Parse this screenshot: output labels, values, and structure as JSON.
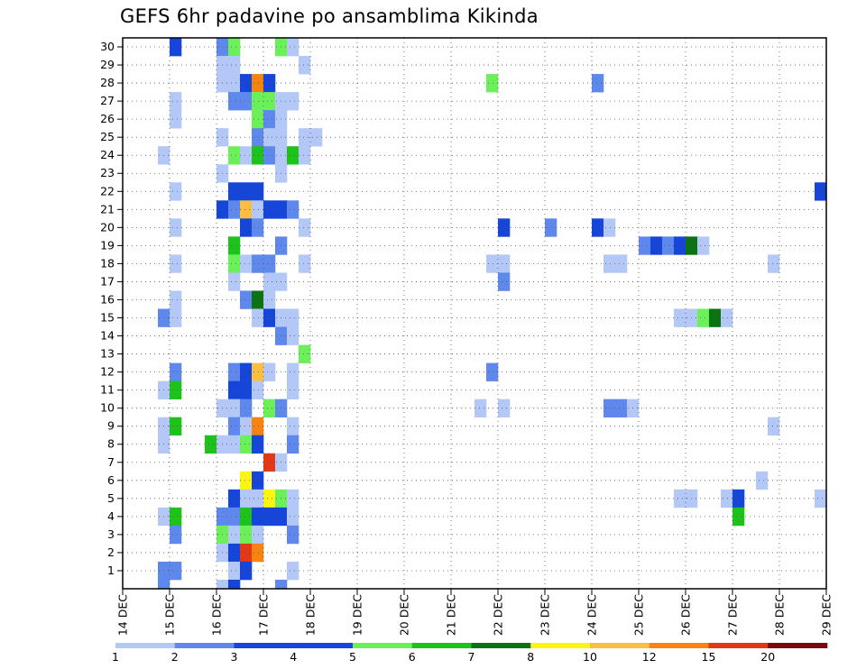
{
  "title": "GEFS 6hr padavine po ansamblima Kikinda",
  "chart_data": {
    "type": "heatmap",
    "title": "GEFS 6hr padavine po ansamblima Kikinda",
    "xlabel": "",
    "ylabel": "",
    "x_tick_labels": [
      "14 DEC",
      "15 DEC",
      "16 DEC",
      "17 DEC",
      "18 DEC",
      "19 DEC",
      "20 DEC",
      "21 DEC",
      "22 DEC",
      "23 DEC",
      "24 DEC",
      "25 DEC",
      "26 DEC",
      "27 DEC",
      "28 DEC",
      "29 DEC"
    ],
    "y_tick_labels": [
      "1",
      "2",
      "3",
      "4",
      "5",
      "6",
      "7",
      "8",
      "9",
      "10",
      "11",
      "12",
      "13",
      "14",
      "15",
      "16",
      "17",
      "18",
      "19",
      "20",
      "21",
      "22",
      "23",
      "24",
      "25",
      "26",
      "27",
      "28",
      "29",
      "30"
    ],
    "x_range": [
      "14 DEC",
      "29 DEC"
    ],
    "y_range": [
      0,
      30
    ],
    "time_step_hours": 6,
    "grid": true,
    "legend_position": "bottom",
    "colorbar": {
      "labels": [
        "1",
        "2",
        "3",
        "4",
        "5",
        "6",
        "7",
        "8",
        "10",
        "12",
        "15",
        "20"
      ],
      "colors": [
        "#b3c8f7",
        "#5f88ec",
        "#1646d9",
        "#1a44e0",
        "#6cf05a",
        "#1dc21b",
        "#0b7312",
        "#fbf611",
        "#fbbe3e",
        "#f78310",
        "#e23818",
        "#770b10"
      ]
    },
    "cells": [
      {
        "m": 30,
        "t": "15 DEC 00Z",
        "v": 3
      },
      {
        "m": 30,
        "t": "16 DEC 00Z",
        "v": 2
      },
      {
        "m": 30,
        "t": "16 DEC 06Z",
        "v": 5
      },
      {
        "m": 30,
        "t": "17 DEC 06Z",
        "v": 5
      },
      {
        "m": 30,
        "t": "17 DEC 12Z",
        "v": 1
      },
      {
        "m": 29,
        "t": "16 DEC 00Z",
        "v": 1
      },
      {
        "m": 29,
        "t": "16 DEC 06Z",
        "v": 1
      },
      {
        "m": 29,
        "t": "17 DEC 18Z",
        "v": 1
      },
      {
        "m": 28,
        "t": "16 DEC 00Z",
        "v": 1
      },
      {
        "m": 28,
        "t": "16 DEC 06Z",
        "v": 1
      },
      {
        "m": 28,
        "t": "16 DEC 12Z",
        "v": 3
      },
      {
        "m": 28,
        "t": "16 DEC 18Z",
        "v": 12
      },
      {
        "m": 28,
        "t": "17 DEC 00Z",
        "v": 3
      },
      {
        "m": 28,
        "t": "21 DEC 18Z",
        "v": 5
      },
      {
        "m": 28,
        "t": "24 DEC 00Z",
        "v": 2
      },
      {
        "m": 27,
        "t": "15 DEC 00Z",
        "v": 1
      },
      {
        "m": 27,
        "t": "16 DEC 06Z",
        "v": 2
      },
      {
        "m": 27,
        "t": "16 DEC 12Z",
        "v": 2
      },
      {
        "m": 27,
        "t": "16 DEC 18Z",
        "v": 5
      },
      {
        "m": 27,
        "t": "17 DEC 00Z",
        "v": 5
      },
      {
        "m": 27,
        "t": "17 DEC 06Z",
        "v": 1
      },
      {
        "m": 27,
        "t": "17 DEC 12Z",
        "v": 1
      },
      {
        "m": 26,
        "t": "15 DEC 00Z",
        "v": 1
      },
      {
        "m": 26,
        "t": "16 DEC 18Z",
        "v": 5
      },
      {
        "m": 26,
        "t": "17 DEC 00Z",
        "v": 2
      },
      {
        "m": 26,
        "t": "17 DEC 06Z",
        "v": 1
      },
      {
        "m": 25,
        "t": "16 DEC 00Z",
        "v": 1
      },
      {
        "m": 25,
        "t": "16 DEC 18Z",
        "v": 2
      },
      {
        "m": 25,
        "t": "17 DEC 00Z",
        "v": 1
      },
      {
        "m": 25,
        "t": "17 DEC 06Z",
        "v": 1
      },
      {
        "m": 25,
        "t": "17 DEC 18Z",
        "v": 1
      },
      {
        "m": 25,
        "t": "18 DEC 00Z",
        "v": 1
      },
      {
        "m": 24,
        "t": "14 DEC 18Z",
        "v": 1
      },
      {
        "m": 24,
        "t": "16 DEC 06Z",
        "v": 5
      },
      {
        "m": 24,
        "t": "16 DEC 12Z",
        "v": 1
      },
      {
        "m": 24,
        "t": "16 DEC 18Z",
        "v": 6
      },
      {
        "m": 24,
        "t": "17 DEC 00Z",
        "v": 2
      },
      {
        "m": 24,
        "t": "17 DEC 06Z",
        "v": 1
      },
      {
        "m": 24,
        "t": "17 DEC 12Z",
        "v": 6
      },
      {
        "m": 24,
        "t": "17 DEC 18Z",
        "v": 1
      },
      {
        "m": 23,
        "t": "16 DEC 00Z",
        "v": 1
      },
      {
        "m": 23,
        "t": "17 DEC 06Z",
        "v": 1
      },
      {
        "m": 22,
        "t": "15 DEC 00Z",
        "v": 1
      },
      {
        "m": 22,
        "t": "16 DEC 06Z",
        "v": 3
      },
      {
        "m": 22,
        "t": "16 DEC 12Z",
        "v": 3
      },
      {
        "m": 22,
        "t": "16 DEC 18Z",
        "v": 3
      },
      {
        "m": 22,
        "t": "28 DEC 18Z",
        "v": 3
      },
      {
        "m": 22,
        "t": "29 DEC 00Z",
        "v": 2
      },
      {
        "m": 21,
        "t": "16 DEC 00Z",
        "v": 3
      },
      {
        "m": 21,
        "t": "16 DEC 06Z",
        "v": 2
      },
      {
        "m": 21,
        "t": "16 DEC 12Z",
        "v": 10
      },
      {
        "m": 21,
        "t": "16 DEC 18Z",
        "v": 1
      },
      {
        "m": 21,
        "t": "17 DEC 00Z",
        "v": 3
      },
      {
        "m": 21,
        "t": "17 DEC 06Z",
        "v": 3
      },
      {
        "m": 21,
        "t": "17 DEC 12Z",
        "v": 2
      },
      {
        "m": 20,
        "t": "15 DEC 00Z",
        "v": 1
      },
      {
        "m": 20,
        "t": "16 DEC 12Z",
        "v": 3
      },
      {
        "m": 20,
        "t": "16 DEC 18Z",
        "v": 2
      },
      {
        "m": 20,
        "t": "17 DEC 18Z",
        "v": 1
      },
      {
        "m": 20,
        "t": "22 DEC 00Z",
        "v": 3
      },
      {
        "m": 20,
        "t": "23 DEC 00Z",
        "v": 2
      },
      {
        "m": 20,
        "t": "24 DEC 00Z",
        "v": 3
      },
      {
        "m": 20,
        "t": "24 DEC 06Z",
        "v": 1
      },
      {
        "m": 19,
        "t": "16 DEC 06Z",
        "v": 6
      },
      {
        "m": 19,
        "t": "17 DEC 06Z",
        "v": 2
      },
      {
        "m": 19,
        "t": "25 DEC 00Z",
        "v": 2
      },
      {
        "m": 19,
        "t": "25 DEC 06Z",
        "v": 3
      },
      {
        "m": 19,
        "t": "25 DEC 12Z",
        "v": 2
      },
      {
        "m": 19,
        "t": "25 DEC 18Z",
        "v": 3
      },
      {
        "m": 19,
        "t": "26 DEC 00Z",
        "v": 7
      },
      {
        "m": 19,
        "t": "26 DEC 06Z",
        "v": 1
      },
      {
        "m": 18,
        "t": "15 DEC 00Z",
        "v": 1
      },
      {
        "m": 18,
        "t": "16 DEC 06Z",
        "v": 5
      },
      {
        "m": 18,
        "t": "16 DEC 12Z",
        "v": 1
      },
      {
        "m": 18,
        "t": "16 DEC 18Z",
        "v": 2
      },
      {
        "m": 18,
        "t": "17 DEC 00Z",
        "v": 2
      },
      {
        "m": 18,
        "t": "17 DEC 18Z",
        "v": 1
      },
      {
        "m": 18,
        "t": "21 DEC 18Z",
        "v": 1
      },
      {
        "m": 18,
        "t": "22 DEC 00Z",
        "v": 1
      },
      {
        "m": 18,
        "t": "24 DEC 06Z",
        "v": 1
      },
      {
        "m": 18,
        "t": "24 DEC 12Z",
        "v": 1
      },
      {
        "m": 18,
        "t": "27 DEC 18Z",
        "v": 1
      },
      {
        "m": 17,
        "t": "16 DEC 06Z",
        "v": 1
      },
      {
        "m": 17,
        "t": "17 DEC 00Z",
        "v": 1
      },
      {
        "m": 17,
        "t": "17 DEC 06Z",
        "v": 1
      },
      {
        "m": 17,
        "t": "22 DEC 00Z",
        "v": 2
      },
      {
        "m": 16,
        "t": "15 DEC 00Z",
        "v": 1
      },
      {
        "m": 16,
        "t": "16 DEC 12Z",
        "v": 2
      },
      {
        "m": 16,
        "t": "16 DEC 18Z",
        "v": 7
      },
      {
        "m": 16,
        "t": "17 DEC 00Z",
        "v": 1
      },
      {
        "m": 15,
        "t": "14 DEC 18Z",
        "v": 2
      },
      {
        "m": 15,
        "t": "15 DEC 00Z",
        "v": 1
      },
      {
        "m": 15,
        "t": "16 DEC 18Z",
        "v": 1
      },
      {
        "m": 15,
        "t": "17 DEC 00Z",
        "v": 3
      },
      {
        "m": 15,
        "t": "17 DEC 06Z",
        "v": 1
      },
      {
        "m": 15,
        "t": "17 DEC 12Z",
        "v": 1
      },
      {
        "m": 15,
        "t": "25 DEC 18Z",
        "v": 1
      },
      {
        "m": 15,
        "t": "26 DEC 00Z",
        "v": 1
      },
      {
        "m": 15,
        "t": "26 DEC 06Z",
        "v": 5
      },
      {
        "m": 15,
        "t": "26 DEC 12Z",
        "v": 7
      },
      {
        "m": 15,
        "t": "26 DEC 18Z",
        "v": 1
      },
      {
        "m": 14,
        "t": "17 DEC 06Z",
        "v": 2
      },
      {
        "m": 14,
        "t": "17 DEC 12Z",
        "v": 1
      },
      {
        "m": 13,
        "t": "17 DEC 18Z",
        "v": 5
      },
      {
        "m": 12,
        "t": "15 DEC 00Z",
        "v": 2
      },
      {
        "m": 12,
        "t": "16 DEC 06Z",
        "v": 2
      },
      {
        "m": 12,
        "t": "16 DEC 12Z",
        "v": 3
      },
      {
        "m": 12,
        "t": "16 DEC 18Z",
        "v": 10
      },
      {
        "m": 12,
        "t": "17 DEC 00Z",
        "v": 1
      },
      {
        "m": 12,
        "t": "17 DEC 12Z",
        "v": 1
      },
      {
        "m": 12,
        "t": "21 DEC 18Z",
        "v": 2
      },
      {
        "m": 11,
        "t": "14 DEC 18Z",
        "v": 1
      },
      {
        "m": 11,
        "t": "15 DEC 00Z",
        "v": 6
      },
      {
        "m": 11,
        "t": "16 DEC 06Z",
        "v": 3
      },
      {
        "m": 11,
        "t": "16 DEC 12Z",
        "v": 3
      },
      {
        "m": 11,
        "t": "16 DEC 18Z",
        "v": 1
      },
      {
        "m": 11,
        "t": "17 DEC 12Z",
        "v": 1
      },
      {
        "m": 10,
        "t": "16 DEC 00Z",
        "v": 1
      },
      {
        "m": 10,
        "t": "16 DEC 06Z",
        "v": 1
      },
      {
        "m": 10,
        "t": "16 DEC 12Z",
        "v": 2
      },
      {
        "m": 10,
        "t": "17 DEC 00Z",
        "v": 5
      },
      {
        "m": 10,
        "t": "17 DEC 06Z",
        "v": 2
      },
      {
        "m": 10,
        "t": "21 DEC 12Z",
        "v": 1
      },
      {
        "m": 10,
        "t": "22 DEC 00Z",
        "v": 1
      },
      {
        "m": 10,
        "t": "24 DEC 06Z",
        "v": 2
      },
      {
        "m": 10,
        "t": "24 DEC 12Z",
        "v": 2
      },
      {
        "m": 10,
        "t": "24 DEC 18Z",
        "v": 1
      },
      {
        "m": 9,
        "t": "14 DEC 18Z",
        "v": 1
      },
      {
        "m": 9,
        "t": "15 DEC 00Z",
        "v": 6
      },
      {
        "m": 9,
        "t": "16 DEC 06Z",
        "v": 2
      },
      {
        "m": 9,
        "t": "16 DEC 12Z",
        "v": 1
      },
      {
        "m": 9,
        "t": "16 DEC 18Z",
        "v": 12
      },
      {
        "m": 9,
        "t": "17 DEC 12Z",
        "v": 1
      },
      {
        "m": 9,
        "t": "27 DEC 18Z",
        "v": 1
      },
      {
        "m": 8,
        "t": "14 DEC 18Z",
        "v": 1
      },
      {
        "m": 8,
        "t": "15 DEC 18Z",
        "v": 6
      },
      {
        "m": 8,
        "t": "16 DEC 00Z",
        "v": 1
      },
      {
        "m": 8,
        "t": "16 DEC 06Z",
        "v": 1
      },
      {
        "m": 8,
        "t": "16 DEC 12Z",
        "v": 5
      },
      {
        "m": 8,
        "t": "16 DEC 18Z",
        "v": 3
      },
      {
        "m": 8,
        "t": "17 DEC 12Z",
        "v": 2
      },
      {
        "m": 7,
        "t": "17 DEC 00Z",
        "v": 15
      },
      {
        "m": 7,
        "t": "17 DEC 06Z",
        "v": 1
      },
      {
        "m": 6,
        "t": "16 DEC 12Z",
        "v": 8
      },
      {
        "m": 6,
        "t": "16 DEC 18Z",
        "v": 3
      },
      {
        "m": 6,
        "t": "27 DEC 12Z",
        "v": 1
      },
      {
        "m": 5,
        "t": "16 DEC 06Z",
        "v": 3
      },
      {
        "m": 5,
        "t": "16 DEC 12Z",
        "v": 1
      },
      {
        "m": 5,
        "t": "16 DEC 18Z",
        "v": 1
      },
      {
        "m": 5,
        "t": "17 DEC 00Z",
        "v": 8
      },
      {
        "m": 5,
        "t": "17 DEC 06Z",
        "v": 5
      },
      {
        "m": 5,
        "t": "17 DEC 12Z",
        "v": 1
      },
      {
        "m": 5,
        "t": "25 DEC 18Z",
        "v": 1
      },
      {
        "m": 5,
        "t": "26 DEC 00Z",
        "v": 1
      },
      {
        "m": 5,
        "t": "26 DEC 18Z",
        "v": 1
      },
      {
        "m": 5,
        "t": "27 DEC 00Z",
        "v": 3
      },
      {
        "m": 5,
        "t": "28 DEC 18Z",
        "v": 1
      },
      {
        "m": 4,
        "t": "14 DEC 18Z",
        "v": 1
      },
      {
        "m": 4,
        "t": "15 DEC 00Z",
        "v": 6
      },
      {
        "m": 4,
        "t": "16 DEC 00Z",
        "v": 2
      },
      {
        "m": 4,
        "t": "16 DEC 06Z",
        "v": 2
      },
      {
        "m": 4,
        "t": "16 DEC 12Z",
        "v": 6
      },
      {
        "m": 4,
        "t": "16 DEC 18Z",
        "v": 3
      },
      {
        "m": 4,
        "t": "17 DEC 00Z",
        "v": 3
      },
      {
        "m": 4,
        "t": "17 DEC 06Z",
        "v": 3
      },
      {
        "m": 4,
        "t": "17 DEC 12Z",
        "v": 1
      },
      {
        "m": 4,
        "t": "27 DEC 00Z",
        "v": 6
      },
      {
        "m": 3,
        "t": "15 DEC 00Z",
        "v": 2
      },
      {
        "m": 3,
        "t": "16 DEC 00Z",
        "v": 5
      },
      {
        "m": 3,
        "t": "16 DEC 06Z",
        "v": 1
      },
      {
        "m": 3,
        "t": "16 DEC 12Z",
        "v": 5
      },
      {
        "m": 3,
        "t": "16 DEC 18Z",
        "v": 1
      },
      {
        "m": 3,
        "t": "17 DEC 12Z",
        "v": 2
      },
      {
        "m": 2,
        "t": "16 DEC 00Z",
        "v": 1
      },
      {
        "m": 2,
        "t": "16 DEC 06Z",
        "v": 3
      },
      {
        "m": 2,
        "t": "16 DEC 12Z",
        "v": 15
      },
      {
        "m": 2,
        "t": "16 DEC 18Z",
        "v": 12
      },
      {
        "m": 1,
        "t": "14 DEC 18Z",
        "v": 2
      },
      {
        "m": 1,
        "t": "15 DEC 00Z",
        "v": 2
      },
      {
        "m": 1,
        "t": "16 DEC 06Z",
        "v": 1
      },
      {
        "m": 1,
        "t": "16 DEC 12Z",
        "v": 3
      },
      {
        "m": 1,
        "t": "17 DEC 12Z",
        "v": 1
      },
      {
        "m": 0,
        "t": "14 DEC 18Z",
        "v": 2
      },
      {
        "m": 0,
        "t": "16 DEC 00Z",
        "v": 1
      },
      {
        "m": 0,
        "t": "16 DEC 06Z",
        "v": 3
      },
      {
        "m": 0,
        "t": "17 DEC 06Z",
        "v": 2
      }
    ]
  }
}
